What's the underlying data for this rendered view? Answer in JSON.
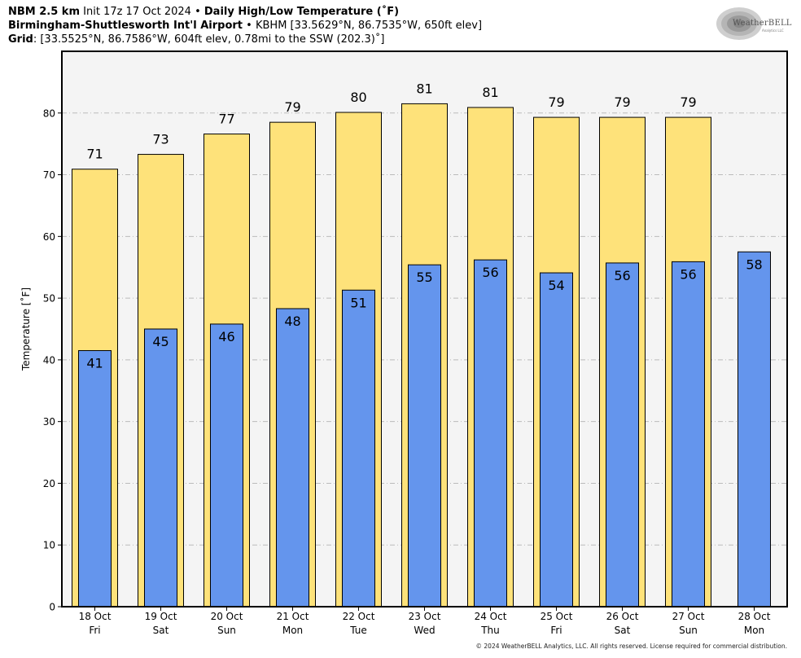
{
  "header": {
    "line1_model": "NBM 2.5 km",
    "line1_init": "Init 17z 17 Oct 2024",
    "line1_sep": "•",
    "line1_product": "Daily High/Low Temperature (˚F)",
    "line2_station": "Birmingham-Shuttlesworth Int'l Airport",
    "line2_sep": "•",
    "line2_info": "KBHM [33.5629°N, 86.7535°W, 650ft elev]",
    "line3_label": "Grid",
    "line3_info": ": [33.5525°N, 86.7586°W, 604ft elev, 0.78mi to the SSW (202.3)˚]"
  },
  "logo": {
    "text": "WeatherBELL",
    "sub": "Analytics LLC"
  },
  "copyright": "© 2024 WeatherBELL Analytics, LLC. All rights reserved. License required for commercial distribution.",
  "colors": {
    "high": "#FEE27A",
    "low": "#6495ED",
    "plot_bg": "#F4F4F4",
    "grid": "#BBBBBB"
  },
  "chart_data": {
    "type": "bar",
    "ylabel": "Temperature [˚F]",
    "ylim": [
      0,
      90
    ],
    "yticks": [
      0,
      10,
      20,
      30,
      40,
      50,
      60,
      70,
      80
    ],
    "grid": true,
    "categories": [
      [
        "18 Oct",
        "Fri"
      ],
      [
        "19 Oct",
        "Sat"
      ],
      [
        "20 Oct",
        "Sun"
      ],
      [
        "21 Oct",
        "Mon"
      ],
      [
        "22 Oct",
        "Tue"
      ],
      [
        "23 Oct",
        "Wed"
      ],
      [
        "24 Oct",
        "Thu"
      ],
      [
        "25 Oct",
        "Fri"
      ],
      [
        "26 Oct",
        "Sat"
      ],
      [
        "27 Oct",
        "Sun"
      ],
      [
        "28 Oct",
        "Mon"
      ]
    ],
    "series": [
      {
        "key": "high",
        "values": [
          70.9,
          73.3,
          76.6,
          78.5,
          80.1,
          81.5,
          80.9,
          79.3,
          79.3,
          79.3,
          null
        ],
        "labels": [
          "71",
          "73",
          "77",
          "79",
          "80",
          "81",
          "81",
          "79",
          "79",
          "79",
          ""
        ]
      },
      {
        "key": "low",
        "values": [
          41.5,
          45.0,
          45.8,
          48.3,
          51.3,
          55.4,
          56.2,
          54.1,
          55.7,
          55.9,
          57.5
        ],
        "labels": [
          "41",
          "45",
          "46",
          "48",
          "51",
          "55",
          "56",
          "54",
          "56",
          "56",
          "58"
        ]
      }
    ]
  }
}
